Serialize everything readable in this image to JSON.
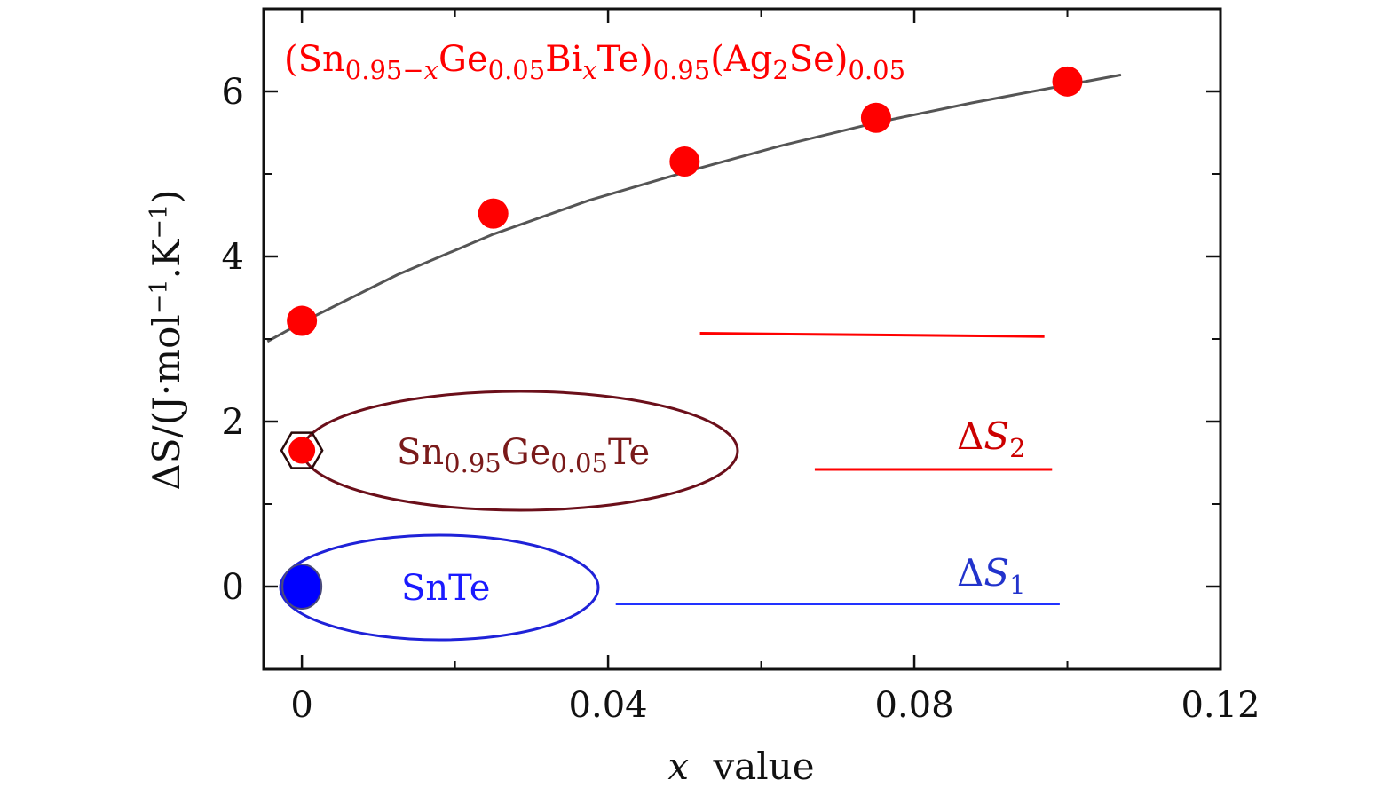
{
  "chart_data": {
    "type": "scatter",
    "title": "",
    "xlabel": "",
    "ylabel": "",
    "xlabel_parts": {
      "var": "x",
      "rest": "value"
    },
    "ylabel_parts": {
      "main": "ΔS/(J·mol",
      "sup1": "−1",
      "mid": ".K",
      "sup2": "−1",
      "close": ")"
    },
    "xlim": [
      -0.005,
      0.12
    ],
    "ylim": [
      -1.0,
      7.0
    ],
    "xticks": [
      {
        "value": 0,
        "label": "0"
      },
      {
        "value": 0.04,
        "label": "0.04"
      },
      {
        "value": 0.08,
        "label": "0.08"
      },
      {
        "value": 0.12,
        "label": "0.12"
      }
    ],
    "xminor": [
      0.02,
      0.06,
      0.1
    ],
    "yticks": [
      {
        "value": 0,
        "label": "0"
      },
      {
        "value": 2,
        "label": "2"
      },
      {
        "value": 4,
        "label": "4"
      },
      {
        "value": 6,
        "label": "6"
      }
    ],
    "yminor": [
      1,
      3,
      5
    ],
    "grid": false,
    "series": [
      {
        "name": "(Sn0.95−xGe0.05BixTe)0.95(Ag2Se)0.05",
        "color": "#ff0000",
        "x": [
          0,
          0.025,
          0.05,
          0.075,
          0.1
        ],
        "y": [
          3.22,
          4.52,
          5.15,
          5.68,
          6.12
        ]
      }
    ],
    "fit_curve": {
      "color": "#555555",
      "x": [
        -0.0045,
        0.0,
        0.0125,
        0.025,
        0.0375,
        0.05,
        0.0625,
        0.075,
        0.0875,
        0.1,
        0.107
      ],
      "y": [
        2.97,
        3.2,
        3.78,
        4.27,
        4.68,
        5.02,
        5.34,
        5.62,
        5.86,
        6.08,
        6.2
      ]
    },
    "reference_points": [
      {
        "label": "Sn0.95Ge0.05Te",
        "x": 0,
        "y": 1.65,
        "color": "#ff0000",
        "marker": "hexagon"
      },
      {
        "label": "SnTe",
        "x": 0,
        "y": 0.0,
        "color": "#0000ff",
        "marker": "circle"
      }
    ],
    "level_lines": [
      {
        "color": "#ff0000",
        "x": [
          0.052,
          0.097
        ],
        "y": [
          3.07,
          3.03
        ]
      },
      {
        "color": "#ff0000",
        "x": [
          0.067,
          0.098
        ],
        "y": [
          1.42,
          1.42
        ],
        "label": "ΔS2"
      },
      {
        "color": "#2233ff",
        "x": [
          0.041,
          0.099
        ],
        "y": [
          -0.21,
          -0.21
        ],
        "label": "ΔS1"
      }
    ],
    "annotations": {
      "formula": {
        "color": "#ff0000",
        "parts": [
          {
            "t": "(Sn"
          },
          {
            "t": "0.95−",
            "sub": true
          },
          {
            "t": "x",
            "sub": true,
            "italic": true
          },
          {
            "t": "Ge"
          },
          {
            "t": "0.05",
            "sub": true
          },
          {
            "t": "Bi"
          },
          {
            "t": "x",
            "sub": true,
            "italic": true
          },
          {
            "t": "Te)"
          },
          {
            "t": "0.95",
            "sub": true
          },
          {
            "t": "(Ag"
          },
          {
            "t": "2",
            "sub": true
          },
          {
            "t": "Se)"
          },
          {
            "t": "0.05",
            "sub": true
          }
        ]
      },
      "sample2": {
        "color": "#7a1a1a",
        "parts": [
          {
            "t": "Sn"
          },
          {
            "t": "0.95",
            "sub": true
          },
          {
            "t": "Ge"
          },
          {
            "t": "0.05",
            "sub": true
          },
          {
            "t": "Te"
          }
        ]
      },
      "sample1": {
        "color": "#1a1aff",
        "text": "SnTe"
      },
      "ds2": {
        "color": "#cc0000",
        "delta": "Δ",
        "var": "S",
        "sub": "2"
      },
      "ds1": {
        "color": "#2233cc",
        "delta": "Δ",
        "var": "S",
        "sub": "1"
      }
    },
    "ellipse_colors": {
      "sample2": "#6b0f1a",
      "sample1": "#1f22d8"
    }
  }
}
